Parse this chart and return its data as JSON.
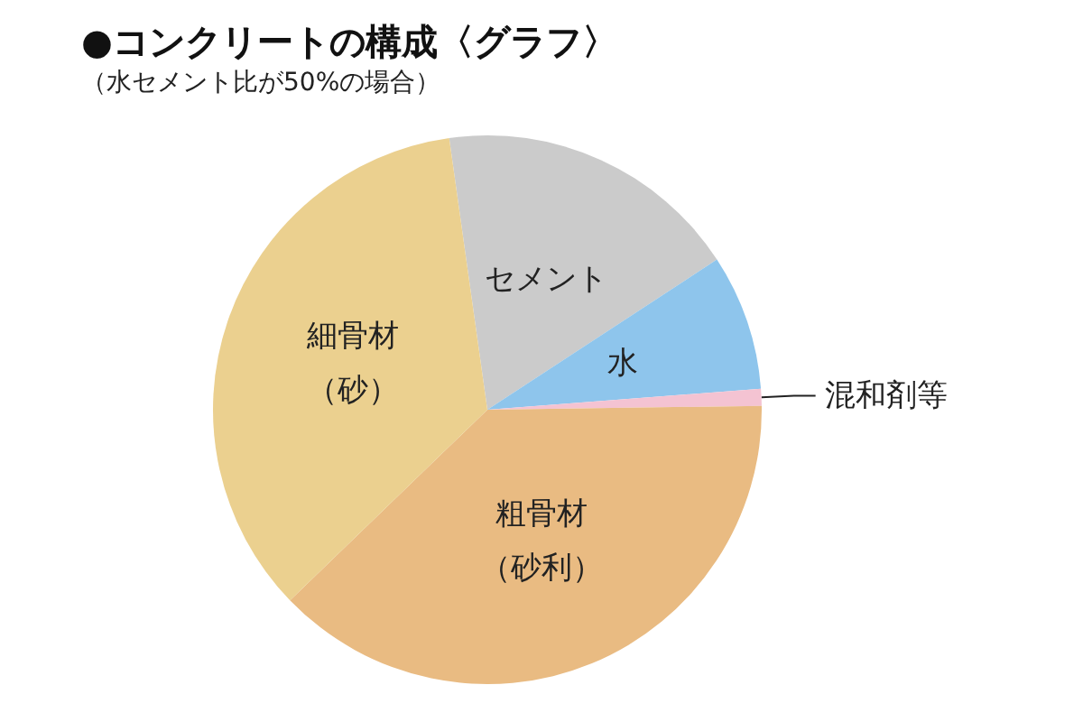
{
  "chart_data": {
    "type": "pie",
    "title": "●コンクリートの構成〈グラフ〉",
    "subtitle": "（水セメント比が50%の場合）",
    "categories": [
      "セメント",
      "水",
      "混和剤等",
      "粗骨材（砂利）",
      "細骨材（砂）"
    ],
    "values": [
      18,
      8,
      1,
      38,
      35
    ],
    "colors": [
      "#cbcbcb",
      "#8ec5ec",
      "#f4c3d2",
      "#e9bb82",
      "#ebd08f"
    ]
  }
}
